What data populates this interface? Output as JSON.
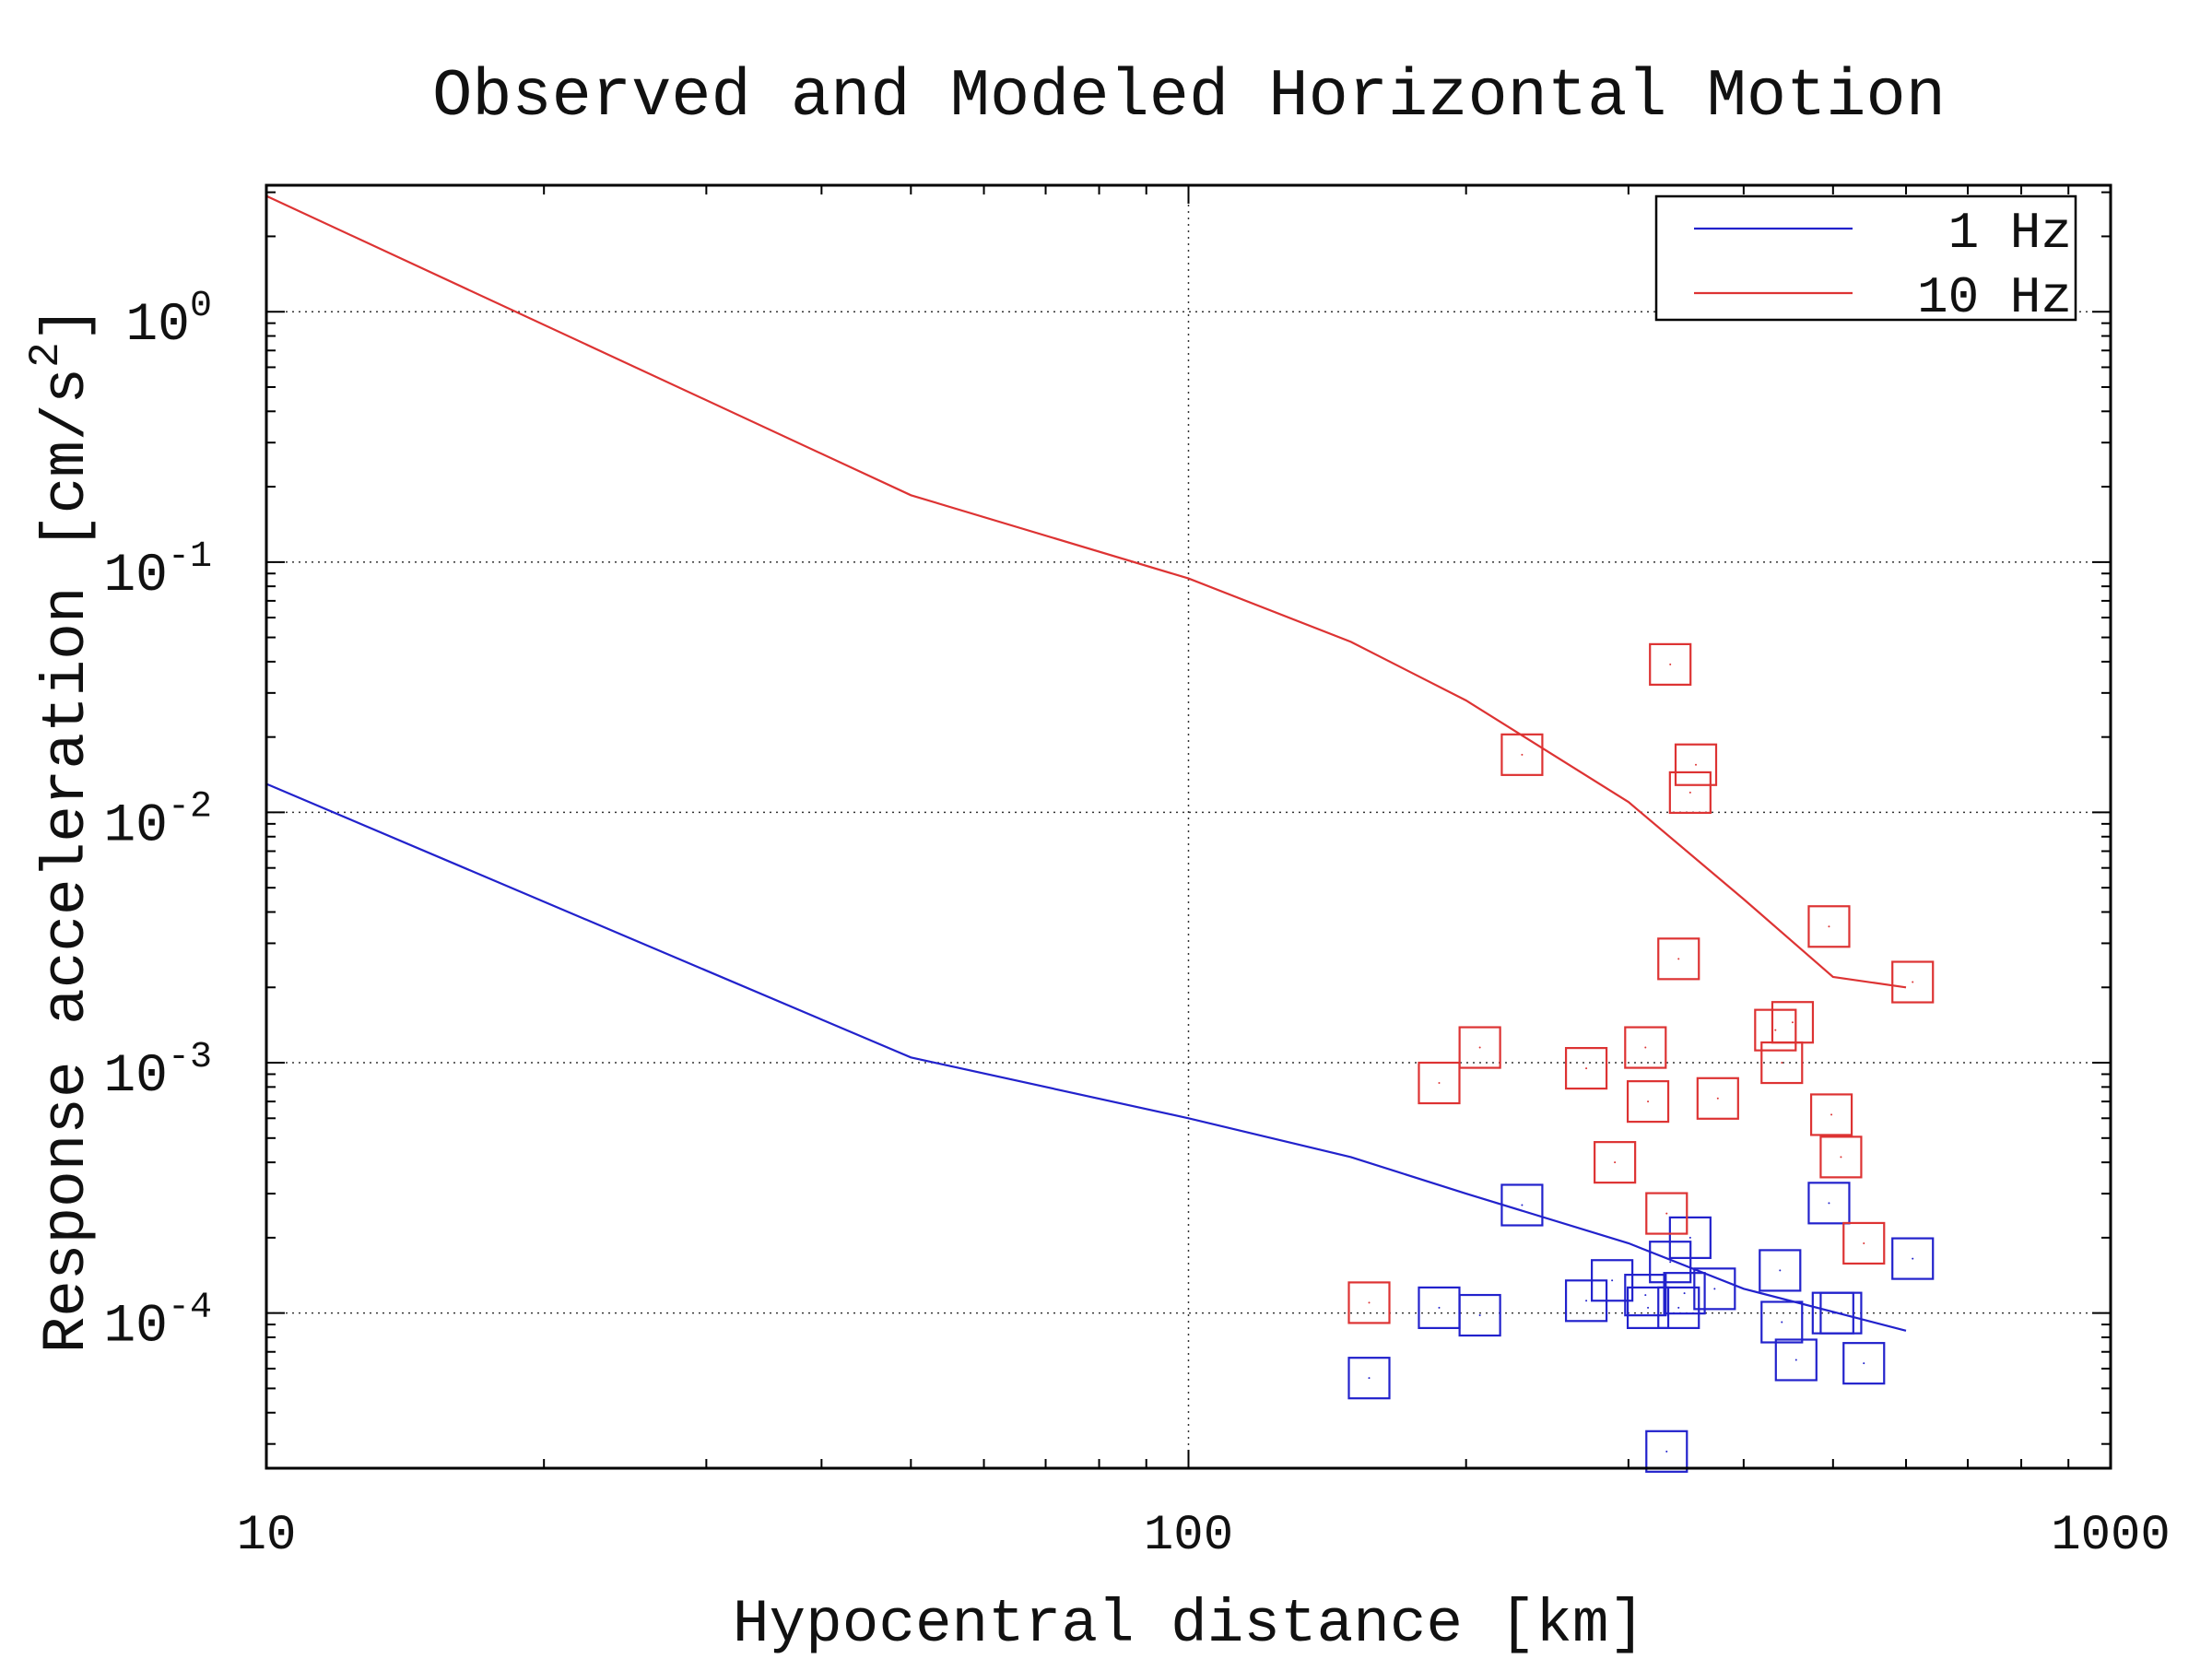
{
  "chart_data": {
    "type": "scatter",
    "title": "Observed and Modeled Horizontal Motion",
    "xlabel": "Hypocentral distance [km]",
    "ylabel": "Response acceleration [cm/s",
    "ylabel_sup": "2",
    "ylabel_end": "]",
    "x_scale": "log",
    "y_scale": "log",
    "xlim": [
      10,
      1000
    ],
    "ylim": [
      2.4e-05,
      3.2
    ],
    "x_ticks": [
      {
        "value": 10,
        "label": "10"
      },
      {
        "value": 100,
        "label": "100"
      },
      {
        "value": 1000,
        "label": "1000"
      }
    ],
    "y_ticks": [
      {
        "value": 1,
        "base": "10",
        "exp": "0"
      },
      {
        "value": 0.1,
        "base": "10",
        "exp": "-1"
      },
      {
        "value": 0.01,
        "base": "10",
        "exp": "-2"
      },
      {
        "value": 0.001,
        "base": "10",
        "exp": "-3"
      },
      {
        "value": 0.0001,
        "base": "10",
        "exp": "-4"
      }
    ],
    "grid": true,
    "legend": {
      "position": "top-right",
      "entries": [
        {
          "label": "1 Hz",
          "color": "#2222cc"
        },
        {
          "label": "10 Hz",
          "color": "#dd3333"
        }
      ]
    },
    "lines": [
      {
        "name": "1 Hz",
        "color": "#2222cc",
        "points": [
          [
            10,
            0.013
          ],
          [
            50,
            0.00105
          ],
          [
            100,
            0.0006
          ],
          [
            150,
            0.00042
          ],
          [
            200,
            0.0003
          ],
          [
            300,
            0.00019
          ],
          [
            400,
            0.000125
          ],
          [
            600,
            8.5e-05
          ]
        ]
      },
      {
        "name": "10 Hz",
        "color": "#dd3333",
        "points": [
          [
            10,
            2.9
          ],
          [
            50,
            0.185
          ],
          [
            100,
            0.086
          ],
          [
            150,
            0.048
          ],
          [
            200,
            0.028
          ],
          [
            300,
            0.011
          ],
          [
            400,
            0.0045
          ],
          [
            500,
            0.0022
          ],
          [
            600,
            0.002
          ]
        ]
      }
    ],
    "scatter": [
      {
        "name": "1 Hz",
        "color": "#2222cc",
        "points": [
          [
            157,
            5.5e-05
          ],
          [
            187,
            0.000105
          ],
          [
            207,
            9.8e-05
          ],
          [
            230,
            0.00027
          ],
          [
            270,
            0.000112
          ],
          [
            288,
            0.000135
          ],
          [
            313,
            0.000118
          ],
          [
            315,
            0.000105
          ],
          [
            330,
            2.8e-05
          ],
          [
            333,
            0.00016
          ],
          [
            340,
            0.000105
          ],
          [
            345,
            0.00012
          ],
          [
            350,
            0.0002
          ],
          [
            372,
            0.000125
          ],
          [
            438,
            0.000148
          ],
          [
            440,
            9.2e-05
          ],
          [
            456,
            6.5e-05
          ],
          [
            495,
            0.000275
          ],
          [
            500,
            0.0001
          ],
          [
            510,
            0.0001
          ],
          [
            540,
            6.3e-05
          ],
          [
            610,
            0.000165
          ]
        ]
      },
      {
        "name": "10 Hz",
        "color": "#dd3333",
        "points": [
          [
            157,
            0.00011
          ],
          [
            187,
            0.00083
          ],
          [
            207,
            0.00115
          ],
          [
            230,
            0.017
          ],
          [
            270,
            0.00095
          ],
          [
            290,
            0.0004
          ],
          [
            313,
            0.00115
          ],
          [
            315,
            0.0007
          ],
          [
            330,
            0.00025
          ],
          [
            333,
            0.039
          ],
          [
            340,
            0.0026
          ],
          [
            350,
            0.012
          ],
          [
            355,
            0.0155
          ],
          [
            375,
            0.00072
          ],
          [
            433,
            0.00135
          ],
          [
            440,
            0.001
          ],
          [
            452,
            0.00145
          ],
          [
            495,
            0.0035
          ],
          [
            498,
            0.00062
          ],
          [
            510,
            0.00042
          ],
          [
            540,
            0.00019
          ],
          [
            610,
            0.0021
          ]
        ]
      }
    ]
  }
}
